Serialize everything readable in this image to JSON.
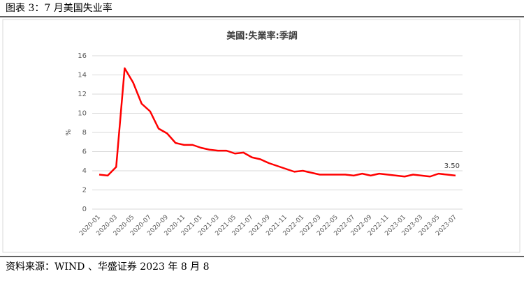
{
  "header": {
    "title": "图表 3：7 月美国失业率"
  },
  "chart_data": {
    "type": "line",
    "title": "美國:失業率:季調",
    "y_label": "%",
    "categories": [
      "2020-01",
      null,
      "2020-03",
      null,
      "2020-05",
      null,
      "2020-07",
      null,
      "2020-09",
      null,
      "2020-11",
      null,
      "2021-01",
      null,
      "2021-03",
      null,
      "2021-05",
      null,
      "2021-07",
      null,
      "2021-09",
      null,
      "2021-11",
      null,
      "2022-01",
      null,
      "2022-03",
      null,
      "2022-05",
      null,
      "2022-07",
      null,
      "2022-09",
      null,
      "2022-11",
      null,
      "2023-01",
      null,
      "2023-03",
      null,
      "2023-05",
      null,
      "2023-07"
    ],
    "series": [
      {
        "name": "美國:失業率:季調",
        "color": "#ff0000",
        "values": [
          3.6,
          3.5,
          4.4,
          14.7,
          13.2,
          11.0,
          10.2,
          8.4,
          7.9,
          6.9,
          6.7,
          6.7,
          6.4,
          6.2,
          6.1,
          6.1,
          5.8,
          5.9,
          5.4,
          5.2,
          4.8,
          4.5,
          4.2,
          3.9,
          4.0,
          3.8,
          3.6,
          3.6,
          3.6,
          3.6,
          3.5,
          3.7,
          3.5,
          3.7,
          3.6,
          3.5,
          3.4,
          3.6,
          3.5,
          3.4,
          3.7,
          3.6,
          3.5
        ],
        "value_labels": [
          null,
          null,
          null,
          null,
          null,
          null,
          null,
          null,
          null,
          null,
          null,
          null,
          null,
          null,
          null,
          null,
          null,
          null,
          null,
          null,
          null,
          null,
          null,
          null,
          null,
          null,
          null,
          null,
          null,
          null,
          null,
          null,
          null,
          null,
          null,
          null,
          null,
          null,
          null,
          null,
          null,
          null,
          "3.50"
        ]
      }
    ],
    "ylim": [
      0,
      16
    ],
    "yticks": [
      0,
      2,
      4,
      6,
      8,
      10,
      12,
      14,
      16
    ],
    "grid": true
  },
  "footer": {
    "source": "资料来源：WIND 、华盛证券 2023 年 8 月 8"
  }
}
